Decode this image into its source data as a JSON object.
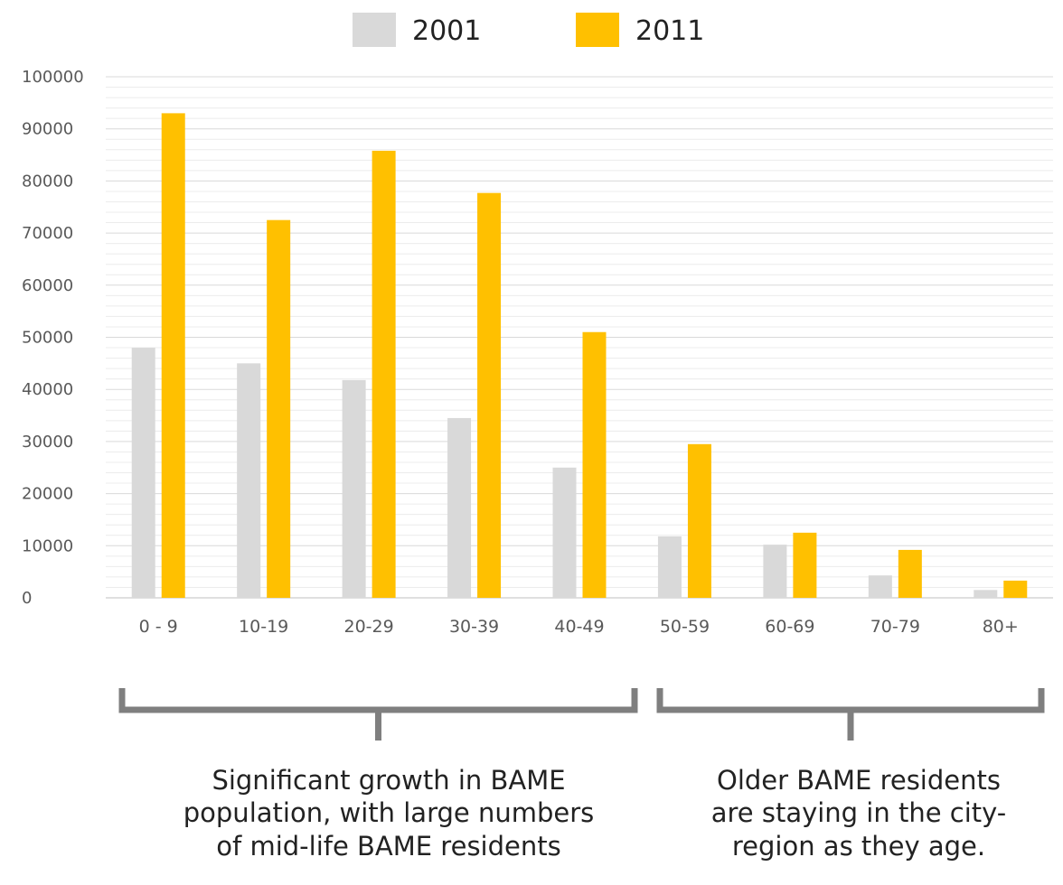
{
  "chart_data": {
    "type": "bar",
    "categories": [
      "0 - 9",
      "10-19",
      "20-29",
      "30-39",
      "40-49",
      "50-59",
      "60-69",
      "70-79",
      "80+"
    ],
    "series": [
      {
        "name": "2001",
        "color": "#d9d9d9",
        "values": [
          48000,
          45000,
          41800,
          34500,
          25000,
          11800,
          10200,
          4300,
          1500
        ]
      },
      {
        "name": "2011",
        "color": "#ffc000",
        "values": [
          93000,
          72500,
          85800,
          77700,
          51000,
          29500,
          12500,
          9200,
          3300
        ]
      }
    ],
    "yticks": [
      "0",
      "10000",
      "20000",
      "30000",
      "40000",
      "50000",
      "60000",
      "70000",
      "80000",
      "90000",
      "100000"
    ],
    "ylim": [
      0,
      100000
    ],
    "grid": true,
    "legend_position": "top-center",
    "title": "",
    "xlabel": "",
    "ylabel": ""
  },
  "annotations": {
    "left": [
      "Significant growth in BAME",
      "population, with large numbers",
      "of mid-life BAME residents"
    ],
    "right": [
      "Older BAME residents",
      "are staying in the city-",
      "region as they age."
    ]
  },
  "bracket_color": "#7f7f7f"
}
